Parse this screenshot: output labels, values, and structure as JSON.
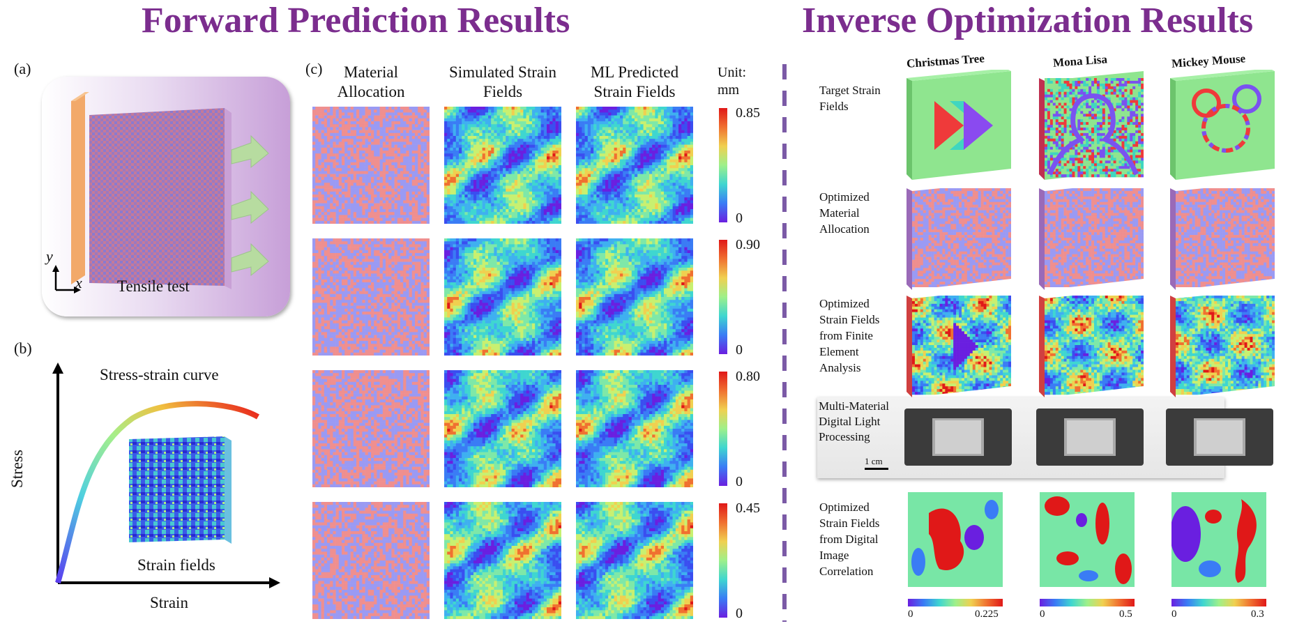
{
  "titles": {
    "forward": "Forward Prediction Results",
    "inverse": "Inverse Optimization Results"
  },
  "panel_a": {
    "label": "(a)",
    "caption": "Tensile test",
    "axis_y": "y",
    "axis_x": "x"
  },
  "panel_b": {
    "label": "(b)",
    "curve_label": "Stress-strain curve",
    "inset_label": "Strain fields",
    "xlabel": "Strain",
    "ylabel": "Stress"
  },
  "panel_c": {
    "label": "(c)",
    "col_material": "Material Allocation",
    "col_simulated": "Simulated Strain Fields",
    "col_ml": "ML Predicted Strain Fields",
    "unit": "Unit: mm",
    "colorbars": [
      {
        "max": "0.85",
        "min": "0"
      },
      {
        "max": "0.90",
        "min": "0"
      },
      {
        "max": "0.80",
        "min": "0"
      },
      {
        "max": "0.45",
        "min": "0"
      }
    ]
  },
  "inverse": {
    "columns": [
      "Christmas Tree",
      "Mona Lisa",
      "Mickey Mouse"
    ],
    "rows": {
      "target": "Target Strain Fields",
      "material": "Optimized Material Allocation",
      "fea": "Optimized Strain Fields from Finite Element Analysis",
      "dlp": "Multi-Material Digital Light Processing",
      "dic": "Optimized Strain Fields from Digital Image Correlation"
    },
    "scalebar": "1 cm",
    "dic_colorbars": [
      {
        "min": "0",
        "max": "0.225"
      },
      {
        "min": "0",
        "max": "0.5"
      },
      {
        "min": "0",
        "max": "0.3"
      }
    ]
  },
  "colors": {
    "title": "#7b2d8e",
    "material_a": "#ef8f8f",
    "material_b": "#9a9af3",
    "target_green": "#8fe58f",
    "tree_red": "#ef3a3a",
    "tree_blue": "#8a4af0",
    "mickey_outline": "#7a52f0"
  }
}
